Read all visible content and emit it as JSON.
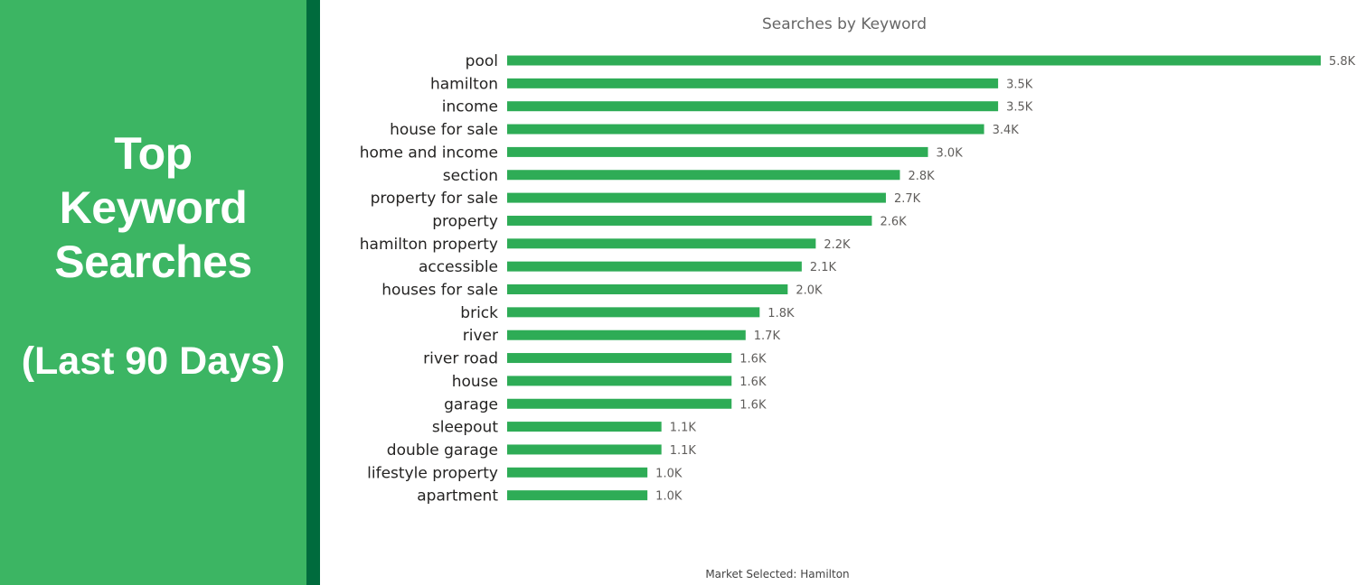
{
  "sidebar": {
    "title_lines": [
      "Top",
      "Keyword",
      "Searches"
    ],
    "subtitle": "(Last 90 Days)",
    "background_color": "#3cb563",
    "accent_color": "#006b3d"
  },
  "footer": {
    "market_text": "Market Selected: Hamilton"
  },
  "chart_data": {
    "type": "bar",
    "orientation": "horizontal",
    "title": "Searches by Keyword",
    "bar_color": "#2eac56",
    "categories": [
      "pool",
      "hamilton",
      "income",
      "house for sale",
      "home and income",
      "section",
      "property for sale",
      "property",
      "hamilton property",
      "accessible",
      "houses for sale",
      "brick",
      "river",
      "river road",
      "house",
      "garage",
      "sleepout",
      "double garage",
      "lifestyle property",
      "apartment"
    ],
    "values": [
      5800,
      3500,
      3500,
      3400,
      3000,
      2800,
      2700,
      2600,
      2200,
      2100,
      2000,
      1800,
      1700,
      1600,
      1600,
      1600,
      1100,
      1100,
      1000,
      1000
    ],
    "data_labels": [
      "5.8K",
      "3.5K",
      "3.5K",
      "3.4K",
      "3.0K",
      "2.8K",
      "2.7K",
      "2.6K",
      "2.2K",
      "2.1K",
      "2.0K",
      "1.8K",
      "1.7K",
      "1.6K",
      "1.6K",
      "1.6K",
      "1.1K",
      "1.1K",
      "1.0K",
      "1.0K"
    ],
    "xlim": [
      0,
      5800
    ],
    "grid": false,
    "legend": "none"
  }
}
